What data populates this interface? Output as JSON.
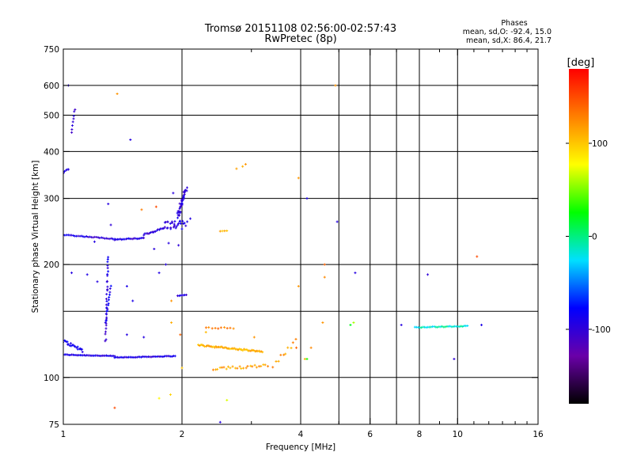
{
  "header": {
    "title_line1": "Tromsø 20151108 02:56:00-02:57:43",
    "title_line2": "RwPretec (8p)",
    "phases_heading": "Phases",
    "phases_o": "mean, sd,O: -92.4, 15.0",
    "phases_x": "mean, sd,X: 86.4, 21.7"
  },
  "chart_data": {
    "type": "scatter",
    "title": "Tromsø 20151108 02:56:00-02:57:43",
    "subtitle": "RwPretec (8p)",
    "xlabel": "Frequency [MHz]",
    "ylabel": "Stationary phase Virtual Height [km]",
    "x_scale": "log",
    "y_scale": "log",
    "xlim": [
      1,
      16
    ],
    "ylim": [
      75,
      750
    ],
    "x_ticks": [
      1,
      2,
      4,
      6,
      8,
      10,
      16
    ],
    "x_tick_labels": [
      "1",
      "2",
      "4",
      "6",
      "8",
      "10",
      "16"
    ],
    "x_minor_ticks": [
      3,
      5,
      7,
      9,
      11,
      12,
      13,
      14,
      15
    ],
    "x_gridlines": [
      1,
      2,
      4,
      5,
      6,
      7,
      8,
      10
    ],
    "y_ticks": [
      75,
      100,
      200,
      300,
      400,
      500,
      600,
      750
    ],
    "y_tick_labels": [
      "75",
      "100",
      "200",
      "300",
      "400",
      "500",
      "600",
      "750"
    ],
    "y_gridlines": [
      100,
      150,
      200,
      300,
      400,
      500,
      600
    ],
    "grid": true,
    "colorbar": {
      "label": "[deg]",
      "range": [
        -180,
        180
      ],
      "ticks": [
        100,
        0,
        -100
      ],
      "tick_labels": [
        "100",
        "0",
        "-100"
      ],
      "colors": [
        "#000000",
        "#6a00a8",
        "#0000ff",
        "#00e0ff",
        "#00ff00",
        "#ffff00",
        "#ff8000",
        "#ff0000"
      ]
    },
    "series": [
      {
        "segments": [
          {
            "x0": 1.0,
            "x1": 1.35,
            "y0": 115,
            "y1": 114,
            "n": 38,
            "jitter": 0.004,
            "phase": -92
          },
          {
            "x0": 1.35,
            "x1": 1.92,
            "y0": 113,
            "y1": 114,
            "n": 44,
            "jitter": 0.004,
            "phase": -95
          },
          {
            "x0": 1.0,
            "x1": 1.12,
            "y0": 125,
            "y1": 118,
            "n": 22,
            "jitter": 0.02,
            "phase": -85
          },
          {
            "x0": 1.0,
            "x1": 1.35,
            "y0": 240,
            "y1": 234,
            "n": 32,
            "jitter": 0.005,
            "phase": -96
          },
          {
            "x0": 1.35,
            "x1": 1.6,
            "y0": 233,
            "y1": 235,
            "n": 22,
            "jitter": 0.006,
            "phase": -95
          },
          {
            "x0": 1.6,
            "x1": 1.8,
            "y0": 240,
            "y1": 250,
            "n": 18,
            "jitter": 0.01,
            "phase": -94
          },
          {
            "x0": 1.8,
            "x1": 2.05,
            "y0": 255,
            "y1": 255,
            "n": 30,
            "jitter": 0.05,
            "phase": -97
          },
          {
            "x0": 1.95,
            "x1": 2.05,
            "y0": 270,
            "y1": 320,
            "n": 40,
            "jitter": 0.04,
            "phase": -100
          },
          {
            "x0": 1.28,
            "x1": 1.3,
            "y0": 125,
            "y1": 210,
            "n": 30,
            "jitter": 0.02,
            "phase": -93
          },
          {
            "x0": 1.28,
            "x1": 1.32,
            "y0": 140,
            "y1": 175,
            "n": 14,
            "jitter": 0.01,
            "phase": -88
          },
          {
            "x0": 1.05,
            "x1": 1.07,
            "y0": 450,
            "y1": 520,
            "n": 8,
            "jitter": 0.01,
            "phase": -94
          },
          {
            "x0": 1.0,
            "x1": 1.03,
            "y0": 350,
            "y1": 360,
            "n": 5,
            "jitter": 0.01,
            "phase": -96
          },
          {
            "x0": 1.95,
            "x1": 2.05,
            "y0": 165,
            "y1": 166,
            "n": 7,
            "jitter": 0.003,
            "phase": -98
          },
          {
            "x0": 2.2,
            "x1": 3.2,
            "y0": 122,
            "y1": 117,
            "n": 60,
            "jitter": 0.01,
            "phase": 110
          },
          {
            "x0": 2.4,
            "x1": 3.3,
            "y0": 105,
            "y1": 108,
            "n": 26,
            "jitter": 0.02,
            "phase": 115
          },
          {
            "x0": 2.3,
            "x1": 2.7,
            "y0": 136,
            "y1": 135,
            "n": 10,
            "jitter": 0.01,
            "phase": 130
          },
          {
            "x0": 3.4,
            "x1": 3.9,
            "y0": 108,
            "y1": 125,
            "n": 10,
            "jitter": 0.03,
            "phase": 120
          },
          {
            "x0": 7.8,
            "x1": 10.6,
            "y0": 136,
            "y1": 137,
            "n": 34,
            "jitter": 0.005,
            "phase": -15
          },
          {
            "x0": 2.5,
            "x1": 2.6,
            "y0": 245,
            "y1": 246,
            "n": 4,
            "jitter": 0.003,
            "phase": 110
          }
        ],
        "points": [
          [
            1.03,
            600,
            -95
          ],
          [
            1.37,
            570,
            120
          ],
          [
            1.48,
            430,
            -95
          ],
          [
            4.9,
            600,
            120
          ],
          [
            2.9,
            370,
            120
          ],
          [
            2.85,
            365,
            110
          ],
          [
            2.75,
            360,
            115
          ],
          [
            3.95,
            340,
            120
          ],
          [
            4.15,
            300,
            -90
          ],
          [
            4.95,
            260,
            -95
          ],
          [
            1.58,
            280,
            130
          ],
          [
            1.72,
            285,
            150
          ],
          [
            5.5,
            190,
            -95
          ],
          [
            8.4,
            188,
            -100
          ],
          [
            11.2,
            210,
            150
          ],
          [
            4.6,
            200,
            140
          ],
          [
            4.6,
            185,
            125
          ],
          [
            3.95,
            175,
            120
          ],
          [
            4.55,
            140,
            120
          ],
          [
            3.9,
            120,
            140
          ],
          [
            4.25,
            120,
            125
          ],
          [
            4.1,
            112,
            110
          ],
          [
            5.45,
            140,
            60
          ],
          [
            5.35,
            138,
            20
          ],
          [
            7.2,
            138,
            -95
          ],
          [
            11.5,
            138,
            -90
          ],
          [
            9.8,
            112,
            -100
          ],
          [
            1.75,
            88,
            80
          ],
          [
            1.87,
            90,
            95
          ],
          [
            1.35,
            83,
            150
          ],
          [
            2.0,
            106,
            100
          ],
          [
            2.6,
            87,
            70
          ],
          [
            2.5,
            76,
            -95
          ],
          [
            4.15,
            112,
            30
          ],
          [
            1.3,
            290,
            -95
          ],
          [
            1.32,
            255,
            -100
          ],
          [
            1.7,
            220,
            -97
          ],
          [
            1.85,
            228,
            -95
          ],
          [
            1.96,
            225,
            -99
          ],
          [
            1.82,
            200,
            -96
          ],
          [
            1.75,
            190,
            -93
          ],
          [
            1.05,
            190,
            -94
          ],
          [
            1.15,
            188,
            -92
          ],
          [
            1.22,
            180,
            -94
          ],
          [
            1.2,
            230,
            -94
          ],
          [
            1.45,
            175,
            -90
          ],
          [
            1.5,
            160,
            -90
          ],
          [
            1.45,
            130,
            -94
          ],
          [
            1.6,
            128,
            -95
          ],
          [
            1.88,
            140,
            110
          ],
          [
            1.88,
            160,
            120
          ],
          [
            1.98,
            130,
            140
          ],
          [
            2.3,
            132,
            105
          ],
          [
            3.05,
            128,
            120
          ],
          [
            2.1,
            265,
            -95
          ],
          [
            1.9,
            310,
            -96
          ]
        ]
      }
    ]
  }
}
